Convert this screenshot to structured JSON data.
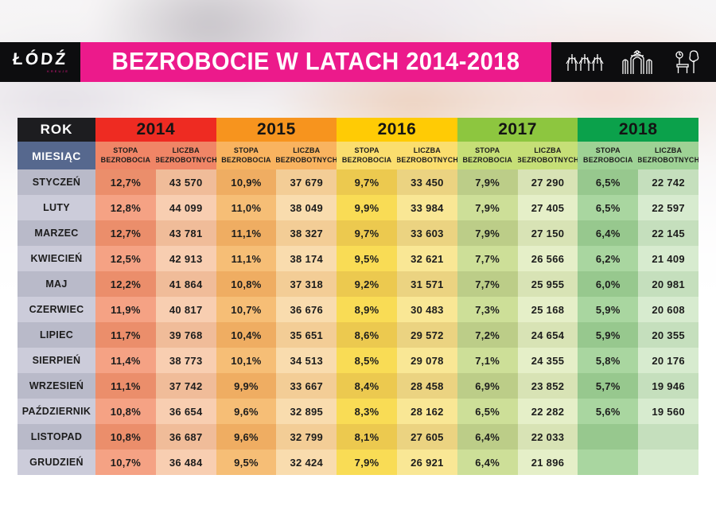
{
  "header": {
    "logo_text": "ŁÓDŹ",
    "logo_sub": "KREUJE",
    "title": "BEZROBOCIE W LATACH 2014-2018",
    "icons": [
      "arched-fountain-landmark-icon",
      "gate-landmark-icon",
      "park-bench-tree-icon"
    ]
  },
  "colors": {
    "banner_pink": "#EC1A8B",
    "banner_black": "#0D0D0F",
    "rok_bg": "#1D1D20",
    "miesiac_bg": "#56688E",
    "month_row_bg": [
      "#B9BAC9",
      "#CCCCDA"
    ]
  },
  "table": {
    "rok_label": "ROK",
    "miesiac_label": "MIESIĄC",
    "sub_headers": [
      "STOPA BEZROBOCIA",
      "LICZBA BEZROBOTNYCH"
    ],
    "years": [
      {
        "label": "2014",
        "header": "#EE2B22",
        "sub": "#F08566",
        "stopa": [
          "#EB8E6B",
          "#F5A284"
        ],
        "liczba": [
          "#F0BC99",
          "#F8CEB1"
        ]
      },
      {
        "label": "2015",
        "header": "#F7941E",
        "sub": "#F9B35F",
        "stopa": [
          "#EFAD62",
          "#F6BE76"
        ],
        "liczba": [
          "#F3CD96",
          "#F9DCAE"
        ]
      },
      {
        "label": "2016",
        "header": "#FFCB05",
        "sub": "#FBDE6E",
        "stopa": [
          "#ECC94F",
          "#F9DC55"
        ],
        "liczba": [
          "#EBD381",
          "#F9E795"
        ]
      },
      {
        "label": "2017",
        "header": "#8DC63F",
        "sub": "#C6DF77",
        "stopa": [
          "#BCCD88",
          "#CDDF98"
        ],
        "liczba": [
          "#D8E3B5",
          "#E5EFC8"
        ]
      },
      {
        "label": "2018",
        "header": "#0BA14B",
        "sub": "#9ED295",
        "stopa": [
          "#97C88E",
          "#A9D6A0"
        ],
        "liczba": [
          "#C5DFBD",
          "#D7EBCF"
        ]
      }
    ],
    "rows": [
      {
        "month": "STYCZEŃ",
        "values": [
          "12,7%",
          "43 570",
          "10,9%",
          "37 679",
          "9,7%",
          "33 450",
          "7,9%",
          "27 290",
          "6,5%",
          "22 742"
        ]
      },
      {
        "month": "LUTY",
        "values": [
          "12,8%",
          "44 099",
          "11,0%",
          "38 049",
          "9,9%",
          "33 984",
          "7,9%",
          "27 405",
          "6,5%",
          "22 597"
        ]
      },
      {
        "month": "MARZEC",
        "values": [
          "12,7%",
          "43 781",
          "11,1%",
          "38 327",
          "9,7%",
          "33 603",
          "7,9%",
          "27 150",
          "6,4%",
          "22 145"
        ]
      },
      {
        "month": "KWIECIEŃ",
        "values": [
          "12,5%",
          "42 913",
          "11,1%",
          "38 174",
          "9,5%",
          "32 621",
          "7,7%",
          "26 566",
          "6,2%",
          "21 409"
        ]
      },
      {
        "month": "MAJ",
        "values": [
          "12,2%",
          "41 864",
          "10,8%",
          "37 318",
          "9,2%",
          "31 571",
          "7,7%",
          "25 955",
          "6,0%",
          "20 981"
        ]
      },
      {
        "month": "CZERWIEC",
        "values": [
          "11,9%",
          "40 817",
          "10,7%",
          "36 676",
          "8,9%",
          "30 483",
          "7,3%",
          "25 168",
          "5,9%",
          "20 608"
        ]
      },
      {
        "month": "LIPIEC",
        "values": [
          "11,7%",
          "39 768",
          "10,4%",
          "35 651",
          "8,6%",
          "29 572",
          "7,2%",
          "24 654",
          "5,9%",
          "20 355"
        ]
      },
      {
        "month": "SIERPIEŃ",
        "values": [
          "11,4%",
          "38 773",
          "10,1%",
          "34 513",
          "8,5%",
          "29 078",
          "7,1%",
          "24 355",
          "5,8%",
          "20 176"
        ]
      },
      {
        "month": "WRZESIEŃ",
        "values": [
          "11,1%",
          "37 742",
          "9,9%",
          "33 667",
          "8,4%",
          "28 458",
          "6,9%",
          "23 852",
          "5,7%",
          "19 946"
        ]
      },
      {
        "month": "PAŹDZIERNIK",
        "values": [
          "10,8%",
          "36 654",
          "9,6%",
          "32 895",
          "8,3%",
          "28 162",
          "6,5%",
          "22 282",
          "5,6%",
          "19 560"
        ]
      },
      {
        "month": "LISTOPAD",
        "values": [
          "10,8%",
          "36 687",
          "9,6%",
          "32 799",
          "8,1%",
          "27 605",
          "6,4%",
          "22 033",
          "",
          ""
        ]
      },
      {
        "month": "GRUDZIEŃ",
        "values": [
          "10,7%",
          "36 484",
          "9,5%",
          "32 424",
          "7,9%",
          "26 921",
          "6,4%",
          "21 896",
          "",
          ""
        ]
      }
    ]
  },
  "chart_data": {
    "type": "table",
    "title": "BEZROBOCIE W LATACH 2014-2018",
    "categories": [
      "STYCZEŃ",
      "LUTY",
      "MARZEC",
      "KWIECIEŃ",
      "MAJ",
      "CZERWIEC",
      "LIPIEC",
      "SIERPIEŃ",
      "WRZESIEŃ",
      "PAŹDZIERNIK",
      "LISTOPAD",
      "GRUDZIEŃ"
    ],
    "series": [
      {
        "name": "2014 STOPA BEZROBOCIA (%)",
        "values": [
          12.7,
          12.8,
          12.7,
          12.5,
          12.2,
          11.9,
          11.7,
          11.4,
          11.1,
          10.8,
          10.8,
          10.7
        ]
      },
      {
        "name": "2014 LICZBA BEZROBOTNYCH",
        "values": [
          43570,
          44099,
          43781,
          42913,
          41864,
          40817,
          39768,
          38773,
          37742,
          36654,
          36687,
          36484
        ]
      },
      {
        "name": "2015 STOPA BEZROBOCIA (%)",
        "values": [
          10.9,
          11.0,
          11.1,
          11.1,
          10.8,
          10.7,
          10.4,
          10.1,
          9.9,
          9.6,
          9.6,
          9.5
        ]
      },
      {
        "name": "2015 LICZBA BEZROBOTNYCH",
        "values": [
          37679,
          38049,
          38327,
          38174,
          37318,
          36676,
          35651,
          34513,
          33667,
          32895,
          32799,
          32424
        ]
      },
      {
        "name": "2016 STOPA BEZROBOCIA (%)",
        "values": [
          9.7,
          9.9,
          9.7,
          9.5,
          9.2,
          8.9,
          8.6,
          8.5,
          8.4,
          8.3,
          8.1,
          7.9
        ]
      },
      {
        "name": "2016 LICZBA BEZROBOTNYCH",
        "values": [
          33450,
          33984,
          33603,
          32621,
          31571,
          30483,
          29572,
          29078,
          28458,
          28162,
          27605,
          26921
        ]
      },
      {
        "name": "2017 STOPA BEZROBOCIA (%)",
        "values": [
          7.9,
          7.9,
          7.9,
          7.7,
          7.7,
          7.3,
          7.2,
          7.1,
          6.9,
          6.5,
          6.4,
          6.4
        ]
      },
      {
        "name": "2017 LICZBA BEZROBOTNYCH",
        "values": [
          27290,
          27405,
          27150,
          26566,
          25955,
          25168,
          24654,
          24355,
          23852,
          22282,
          22033,
          21896
        ]
      },
      {
        "name": "2018 STOPA BEZROBOCIA (%)",
        "values": [
          6.5,
          6.5,
          6.4,
          6.2,
          6.0,
          5.9,
          5.9,
          5.8,
          5.7,
          5.6,
          null,
          null
        ]
      },
      {
        "name": "2018 LICZBA BEZROBOTNYCH",
        "values": [
          22742,
          22597,
          22145,
          21409,
          20981,
          20608,
          20355,
          20176,
          19946,
          19560,
          null,
          null
        ]
      }
    ]
  }
}
